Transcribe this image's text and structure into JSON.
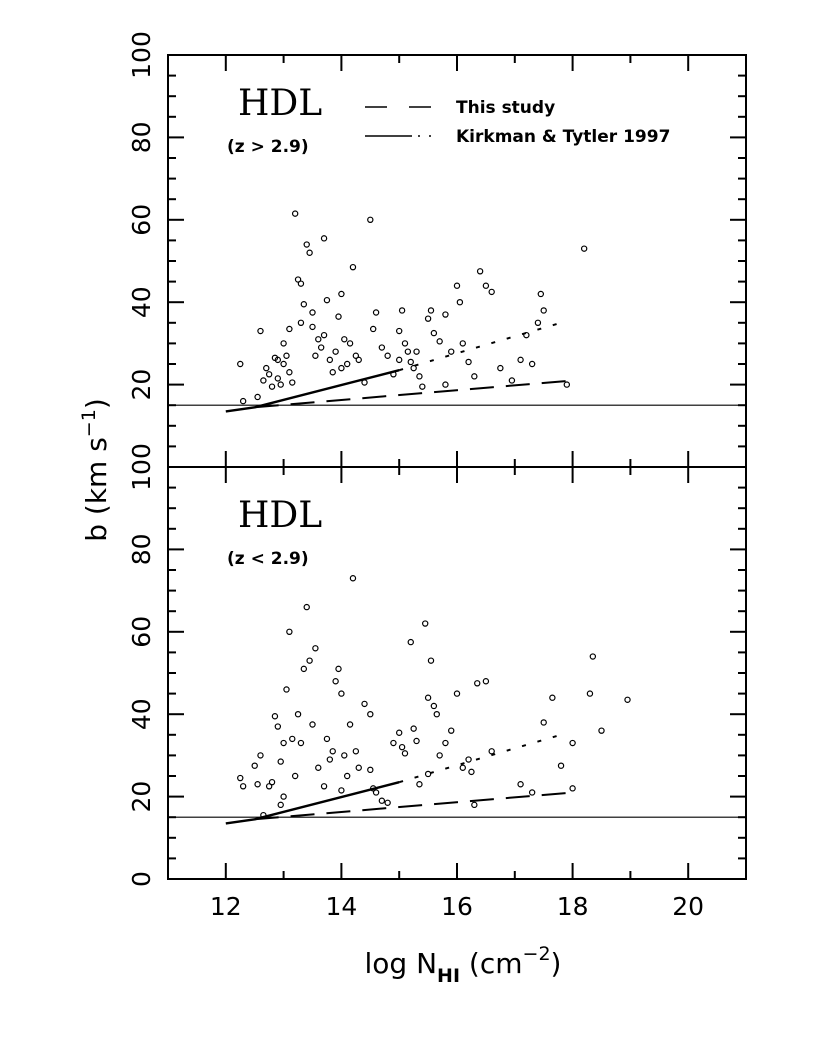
{
  "chart_data": [
    {
      "type": "scatter",
      "label": "HDL",
      "sublabel": "(z > 2.9)",
      "xlim": [
        11,
        21
      ],
      "ylim": [
        0,
        100
      ],
      "xticks": [
        12,
        14,
        16,
        18,
        20
      ],
      "yticks": [
        0,
        20,
        40,
        60,
        80,
        100
      ],
      "yticklabels": [
        "",
        "20",
        "40",
        "60",
        "80",
        "100"
      ],
      "hline": 15,
      "legend": [
        "This study",
        "Kirkman & Tytler 1997"
      ],
      "study_line": [
        [
          12.5,
          14.5
        ],
        [
          18,
          21
        ]
      ],
      "kt_line": [
        [
          12,
          13.5
        ],
        [
          12.5,
          14.5
        ],
        [
          15,
          23.5
        ],
        [
          17.8,
          35
        ]
      ],
      "kt_solid_until": 15,
      "points": [
        [
          12.25,
          25
        ],
        [
          12.3,
          16
        ],
        [
          12.55,
          17
        ],
        [
          12.6,
          33
        ],
        [
          12.65,
          21
        ],
        [
          12.7,
          24
        ],
        [
          12.75,
          22.5
        ],
        [
          12.8,
          19.5
        ],
        [
          12.85,
          26.5
        ],
        [
          12.9,
          26
        ],
        [
          12.95,
          20
        ],
        [
          13,
          25
        ],
        [
          13.05,
          27
        ],
        [
          13.1,
          23
        ],
        [
          13.15,
          20.5
        ],
        [
          13.2,
          61.5
        ],
        [
          13.25,
          45.5
        ],
        [
          13.3,
          44.5
        ],
        [
          13.35,
          39.5
        ],
        [
          13.4,
          54
        ],
        [
          13.45,
          52
        ],
        [
          13.5,
          37.5
        ],
        [
          13.55,
          27
        ],
        [
          13.6,
          31
        ],
        [
          13.65,
          29
        ],
        [
          13.7,
          55.5
        ],
        [
          13.75,
          40.5
        ],
        [
          13.8,
          26
        ],
        [
          13.85,
          23
        ],
        [
          13.9,
          28
        ],
        [
          13.95,
          36.5
        ],
        [
          14,
          42
        ],
        [
          14.05,
          31
        ],
        [
          14.1,
          25
        ],
        [
          14.15,
          30
        ],
        [
          14.2,
          48.5
        ],
        [
          14.25,
          27
        ],
        [
          14.3,
          26
        ],
        [
          14.4,
          20.5
        ],
        [
          14.5,
          60
        ],
        [
          14.55,
          33.5
        ],
        [
          14.6,
          37.5
        ],
        [
          14.7,
          29
        ],
        [
          14.8,
          27
        ],
        [
          14.9,
          22.5
        ],
        [
          15,
          33
        ],
        [
          15.05,
          38
        ],
        [
          15.1,
          30
        ],
        [
          15.15,
          28
        ],
        [
          15.2,
          25.5
        ],
        [
          15.25,
          24
        ],
        [
          15.3,
          28
        ],
        [
          15.35,
          22
        ],
        [
          15.4,
          19.5
        ],
        [
          15.5,
          36
        ],
        [
          15.55,
          38
        ],
        [
          15.6,
          32.5
        ],
        [
          15.7,
          30.5
        ],
        [
          15.8,
          37
        ],
        [
          15.9,
          28
        ],
        [
          16,
          44
        ],
        [
          16.05,
          40
        ],
        [
          16.1,
          30
        ],
        [
          16.2,
          25.5
        ],
        [
          16.3,
          22
        ],
        [
          16.4,
          47.5
        ],
        [
          16.5,
          44
        ],
        [
          16.6,
          42.5
        ],
        [
          16.75,
          24
        ],
        [
          16.95,
          21
        ],
        [
          17.1,
          26
        ],
        [
          17.2,
          32
        ],
        [
          17.3,
          25
        ],
        [
          17.4,
          35
        ],
        [
          17.45,
          42
        ],
        [
          17.5,
          38
        ],
        [
          17.9,
          20
        ],
        [
          18.2,
          53
        ],
        [
          13,
          30
        ],
        [
          13.1,
          33.5
        ],
        [
          13.3,
          35
        ],
        [
          13.5,
          34
        ],
        [
          14,
          24
        ],
        [
          12.9,
          21.5
        ],
        [
          13.7,
          32
        ],
        [
          15,
          26
        ],
        [
          15.8,
          20
        ]
      ]
    },
    {
      "type": "scatter",
      "label": "HDL",
      "sublabel": "(z < 2.9)",
      "xlim": [
        11,
        21
      ],
      "ylim": [
        0,
        100
      ],
      "xticks": [
        12,
        14,
        16,
        18,
        20
      ],
      "yticks": [
        0,
        20,
        40,
        60,
        80,
        100
      ],
      "yticklabels": [
        "0",
        "20",
        "40",
        "60",
        "80",
        "100"
      ],
      "xlabel": "log N_HI (cm^-2)",
      "hline": 15,
      "study_line": [
        [
          12.5,
          14.5
        ],
        [
          18,
          21
        ]
      ],
      "kt_line": [
        [
          12,
          13.5
        ],
        [
          12.5,
          14.5
        ],
        [
          15,
          23.5
        ],
        [
          17.8,
          35
        ]
      ],
      "kt_solid_until": 15,
      "points": [
        [
          12.25,
          24.5
        ],
        [
          12.3,
          22.5
        ],
        [
          12.5,
          27.5
        ],
        [
          12.55,
          23
        ],
        [
          12.6,
          30
        ],
        [
          12.65,
          15.5
        ],
        [
          12.75,
          22.5
        ],
        [
          12.8,
          23.5
        ],
        [
          12.85,
          39.5
        ],
        [
          12.9,
          37
        ],
        [
          12.95,
          28.5
        ],
        [
          13,
          33
        ],
        [
          13.05,
          46
        ],
        [
          13.1,
          60
        ],
        [
          13.15,
          34
        ],
        [
          13.2,
          25
        ],
        [
          13.25,
          40
        ],
        [
          13.3,
          33
        ],
        [
          13.35,
          51
        ],
        [
          13.4,
          66
        ],
        [
          13.45,
          53
        ],
        [
          13.5,
          37.5
        ],
        [
          13.55,
          56
        ],
        [
          13.6,
          27
        ],
        [
          13.7,
          22.5
        ],
        [
          13.75,
          34
        ],
        [
          13.8,
          29
        ],
        [
          13.85,
          31
        ],
        [
          13.9,
          48
        ],
        [
          13.95,
          51
        ],
        [
          14,
          45
        ],
        [
          14.05,
          30
        ],
        [
          14.1,
          25
        ],
        [
          14.15,
          37.5
        ],
        [
          14.2,
          73
        ],
        [
          14.25,
          31
        ],
        [
          14.3,
          27
        ],
        [
          14.4,
          42.5
        ],
        [
          14.5,
          40
        ],
        [
          14.55,
          22
        ],
        [
          14.6,
          21
        ],
        [
          14.7,
          19
        ],
        [
          14.8,
          18.5
        ],
        [
          14.9,
          33
        ],
        [
          15,
          35.5
        ],
        [
          15.05,
          32
        ],
        [
          15.1,
          30.5
        ],
        [
          15.2,
          57.5
        ],
        [
          15.25,
          36.5
        ],
        [
          15.3,
          33.5
        ],
        [
          15.35,
          23
        ],
        [
          15.45,
          62
        ],
        [
          15.5,
          44
        ],
        [
          15.55,
          53
        ],
        [
          15.6,
          42
        ],
        [
          15.65,
          40
        ],
        [
          15.7,
          30
        ],
        [
          15.8,
          33
        ],
        [
          15.9,
          36
        ],
        [
          16,
          45
        ],
        [
          16.1,
          27
        ],
        [
          16.2,
          29
        ],
        [
          16.3,
          18
        ],
        [
          16.35,
          47.5
        ],
        [
          16.5,
          48
        ],
        [
          16.6,
          31
        ],
        [
          17.1,
          23
        ],
        [
          17.3,
          21
        ],
        [
          17.5,
          38
        ],
        [
          17.65,
          44
        ],
        [
          17.8,
          27.5
        ],
        [
          18,
          22
        ],
        [
          18.3,
          45
        ],
        [
          18.35,
          54
        ],
        [
          18.5,
          36
        ],
        [
          18.95,
          43.5
        ],
        [
          13,
          20
        ],
        [
          12.95,
          18
        ],
        [
          14,
          21.5
        ],
        [
          14.5,
          26.5
        ],
        [
          15.5,
          25.5
        ],
        [
          16.25,
          26
        ],
        [
          18,
          33
        ]
      ]
    }
  ]
}
